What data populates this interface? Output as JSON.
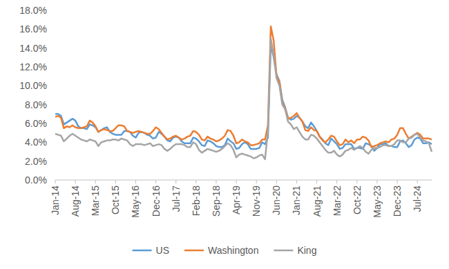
{
  "chart_data": {
    "type": "line",
    "categories": [
      "Jan-14",
      null,
      null,
      null,
      null,
      null,
      null,
      "Aug-14",
      null,
      null,
      null,
      null,
      null,
      null,
      "Mar-15",
      null,
      null,
      null,
      null,
      null,
      null,
      "Oct-15",
      null,
      null,
      null,
      null,
      null,
      null,
      "May-16",
      null,
      null,
      null,
      null,
      null,
      null,
      "Dec-16",
      null,
      null,
      null,
      null,
      null,
      null,
      "Jul-17",
      null,
      null,
      null,
      null,
      null,
      null,
      "Feb-18",
      null,
      null,
      null,
      null,
      null,
      null,
      "Sep-18",
      null,
      null,
      null,
      null,
      null,
      null,
      "Apr-19",
      null,
      null,
      null,
      null,
      null,
      null,
      "Nov-19",
      null,
      null,
      null,
      null,
      null,
      null,
      "Jun-20",
      null,
      null,
      null,
      null,
      null,
      null,
      "Jan-21",
      null,
      null,
      null,
      null,
      null,
      null,
      "Aug-21",
      null,
      null,
      null,
      null,
      null,
      null,
      "Mar-22",
      null,
      null,
      null,
      null,
      null,
      null,
      "Oct-22",
      null,
      null,
      null,
      null,
      null,
      null,
      "May-23",
      null,
      null,
      null,
      null,
      null,
      null,
      "Dec-23",
      null,
      null,
      null,
      null,
      null,
      null,
      "Jul-24",
      null,
      null,
      null,
      null,
      null
    ],
    "series": [
      {
        "name": "US",
        "color": "#5b9bd5",
        "values": [
          7.0,
          7.0,
          6.8,
          5.9,
          6.1,
          6.3,
          6.5,
          6.3,
          5.7,
          5.5,
          5.5,
          5.4,
          5.9,
          5.8,
          5.6,
          5.1,
          5.3,
          5.5,
          5.6,
          5.1,
          4.9,
          4.8,
          4.8,
          4.8,
          5.2,
          5.2,
          5.1,
          4.7,
          4.5,
          5.0,
          5.1,
          5.0,
          4.8,
          4.7,
          4.4,
          4.5,
          5.1,
          4.9,
          4.6,
          4.2,
          4.1,
          4.5,
          4.6,
          4.5,
          4.1,
          3.9,
          3.9,
          3.9,
          4.5,
          4.4,
          4.1,
          3.7,
          3.6,
          4.2,
          4.1,
          3.9,
          3.6,
          3.5,
          3.5,
          3.7,
          4.4,
          4.1,
          3.9,
          3.3,
          3.4,
          3.8,
          4.0,
          3.8,
          3.3,
          3.3,
          3.3,
          3.4,
          4.0,
          3.8,
          4.5,
          14.4,
          13.0,
          11.2,
          10.5,
          8.5,
          7.7,
          6.6,
          6.4,
          6.5,
          6.8,
          6.6,
          6.2,
          5.7,
          5.5,
          6.1,
          5.7,
          5.2,
          4.6,
          4.3,
          3.9,
          3.7,
          4.4,
          4.1,
          3.8,
          3.3,
          3.4,
          3.8,
          3.8,
          3.8,
          3.3,
          3.4,
          3.4,
          3.3,
          3.9,
          3.8,
          3.6,
          3.1,
          3.4,
          3.8,
          3.8,
          3.9,
          3.6,
          3.6,
          3.5,
          3.5,
          4.1,
          4.2,
          3.9,
          3.5,
          3.7,
          4.3,
          4.5,
          4.4,
          3.9,
          3.9,
          4.0,
          3.8
        ]
      },
      {
        "name": "Washington",
        "color": "#ed7d31",
        "values": [
          6.7,
          6.8,
          6.6,
          5.5,
          5.7,
          5.6,
          5.8,
          5.6,
          5.5,
          5.5,
          5.6,
          5.7,
          6.3,
          6.1,
          5.7,
          5.1,
          5.3,
          5.4,
          5.3,
          5.2,
          5.2,
          5.5,
          5.8,
          5.8,
          5.7,
          5.2,
          5.1,
          5.0,
          5.1,
          5.2,
          5.1,
          5.0,
          4.9,
          4.9,
          5.2,
          5.6,
          5.4,
          5.0,
          4.6,
          4.3,
          4.4,
          4.6,
          4.7,
          4.5,
          4.3,
          4.4,
          4.6,
          4.7,
          5.2,
          5.1,
          4.8,
          4.3,
          4.2,
          4.6,
          4.4,
          4.3,
          4.1,
          4.2,
          4.4,
          4.7,
          5.3,
          5.2,
          4.7,
          3.9,
          4.0,
          4.3,
          4.1,
          4.0,
          3.7,
          3.7,
          3.8,
          3.9,
          4.3,
          4.3,
          5.8,
          16.3,
          14.8,
          11.0,
          10.4,
          8.2,
          7.6,
          6.5,
          6.6,
          6.8,
          7.1,
          6.6,
          6.2,
          5.3,
          5.2,
          5.6,
          5.3,
          5.2,
          4.6,
          4.2,
          4.0,
          4.3,
          4.7,
          4.6,
          4.1,
          3.7,
          3.8,
          4.3,
          4.0,
          4.2,
          3.9,
          4.3,
          4.3,
          4.6,
          4.5,
          4.2,
          3.5,
          3.6,
          3.7,
          3.9,
          4.0,
          4.1,
          4.0,
          4.3,
          4.4,
          4.8,
          5.5,
          5.5,
          4.9,
          4.4,
          4.6,
          4.8,
          5.0,
          4.8,
          4.4,
          4.4,
          4.4,
          4.3
        ]
      },
      {
        "name": "King",
        "color": "#a5a5a5",
        "values": [
          4.9,
          4.8,
          4.7,
          4.1,
          4.4,
          4.7,
          4.9,
          4.7,
          4.5,
          4.3,
          4.2,
          4.1,
          4.3,
          4.2,
          4.1,
          3.6,
          4.0,
          4.1,
          4.2,
          4.2,
          4.3,
          4.3,
          4.2,
          4.4,
          4.3,
          4.2,
          3.8,
          3.6,
          3.8,
          3.8,
          3.8,
          3.7,
          3.8,
          3.9,
          3.6,
          3.7,
          3.8,
          3.7,
          3.3,
          3.1,
          3.3,
          3.6,
          3.8,
          3.8,
          3.8,
          3.7,
          3.5,
          3.5,
          4.0,
          3.8,
          3.2,
          2.9,
          3.1,
          3.3,
          3.2,
          3.1,
          3.0,
          3.1,
          3.3,
          3.6,
          3.9,
          3.7,
          3.2,
          2.4,
          2.7,
          2.8,
          2.7,
          2.6,
          2.5,
          2.3,
          2.4,
          2.6,
          2.7,
          2.2,
          5.2,
          15.0,
          13.2,
          10.8,
          10.0,
          8.0,
          7.5,
          6.2,
          5.9,
          5.4,
          5.6,
          5.1,
          4.6,
          4.3,
          4.3,
          4.8,
          4.7,
          4.4,
          4.0,
          3.6,
          3.2,
          2.9,
          2.9,
          3.1,
          2.7,
          2.5,
          2.7,
          3.1,
          3.2,
          3.4,
          3.2,
          3.4,
          3.6,
          3.4,
          3.0,
          2.8,
          3.2,
          3.4,
          3.4,
          3.5,
          3.7,
          3.7,
          3.6,
          3.6,
          3.8,
          4.2,
          4.2,
          4.0,
          4.0,
          4.4,
          4.5,
          4.8,
          4.9,
          4.5,
          4.2,
          4.1,
          3.9,
          3.0
        ]
      }
    ],
    "ylim": [
      0,
      18
    ],
    "yticks": [
      {
        "value": 0,
        "label": "0.0%"
      },
      {
        "value": 2,
        "label": "2.0%"
      },
      {
        "value": 4,
        "label": "4.0%"
      },
      {
        "value": 6,
        "label": "6.0%"
      },
      {
        "value": 8,
        "label": "8.0%"
      },
      {
        "value": 10,
        "label": "10.0%"
      },
      {
        "value": 12,
        "label": "12.0%"
      },
      {
        "value": 14,
        "label": "14.0%"
      },
      {
        "value": 16,
        "label": "16.0%"
      },
      {
        "value": 18,
        "label": "18.0%"
      }
    ],
    "grid": false,
    "legend": "bottom"
  }
}
